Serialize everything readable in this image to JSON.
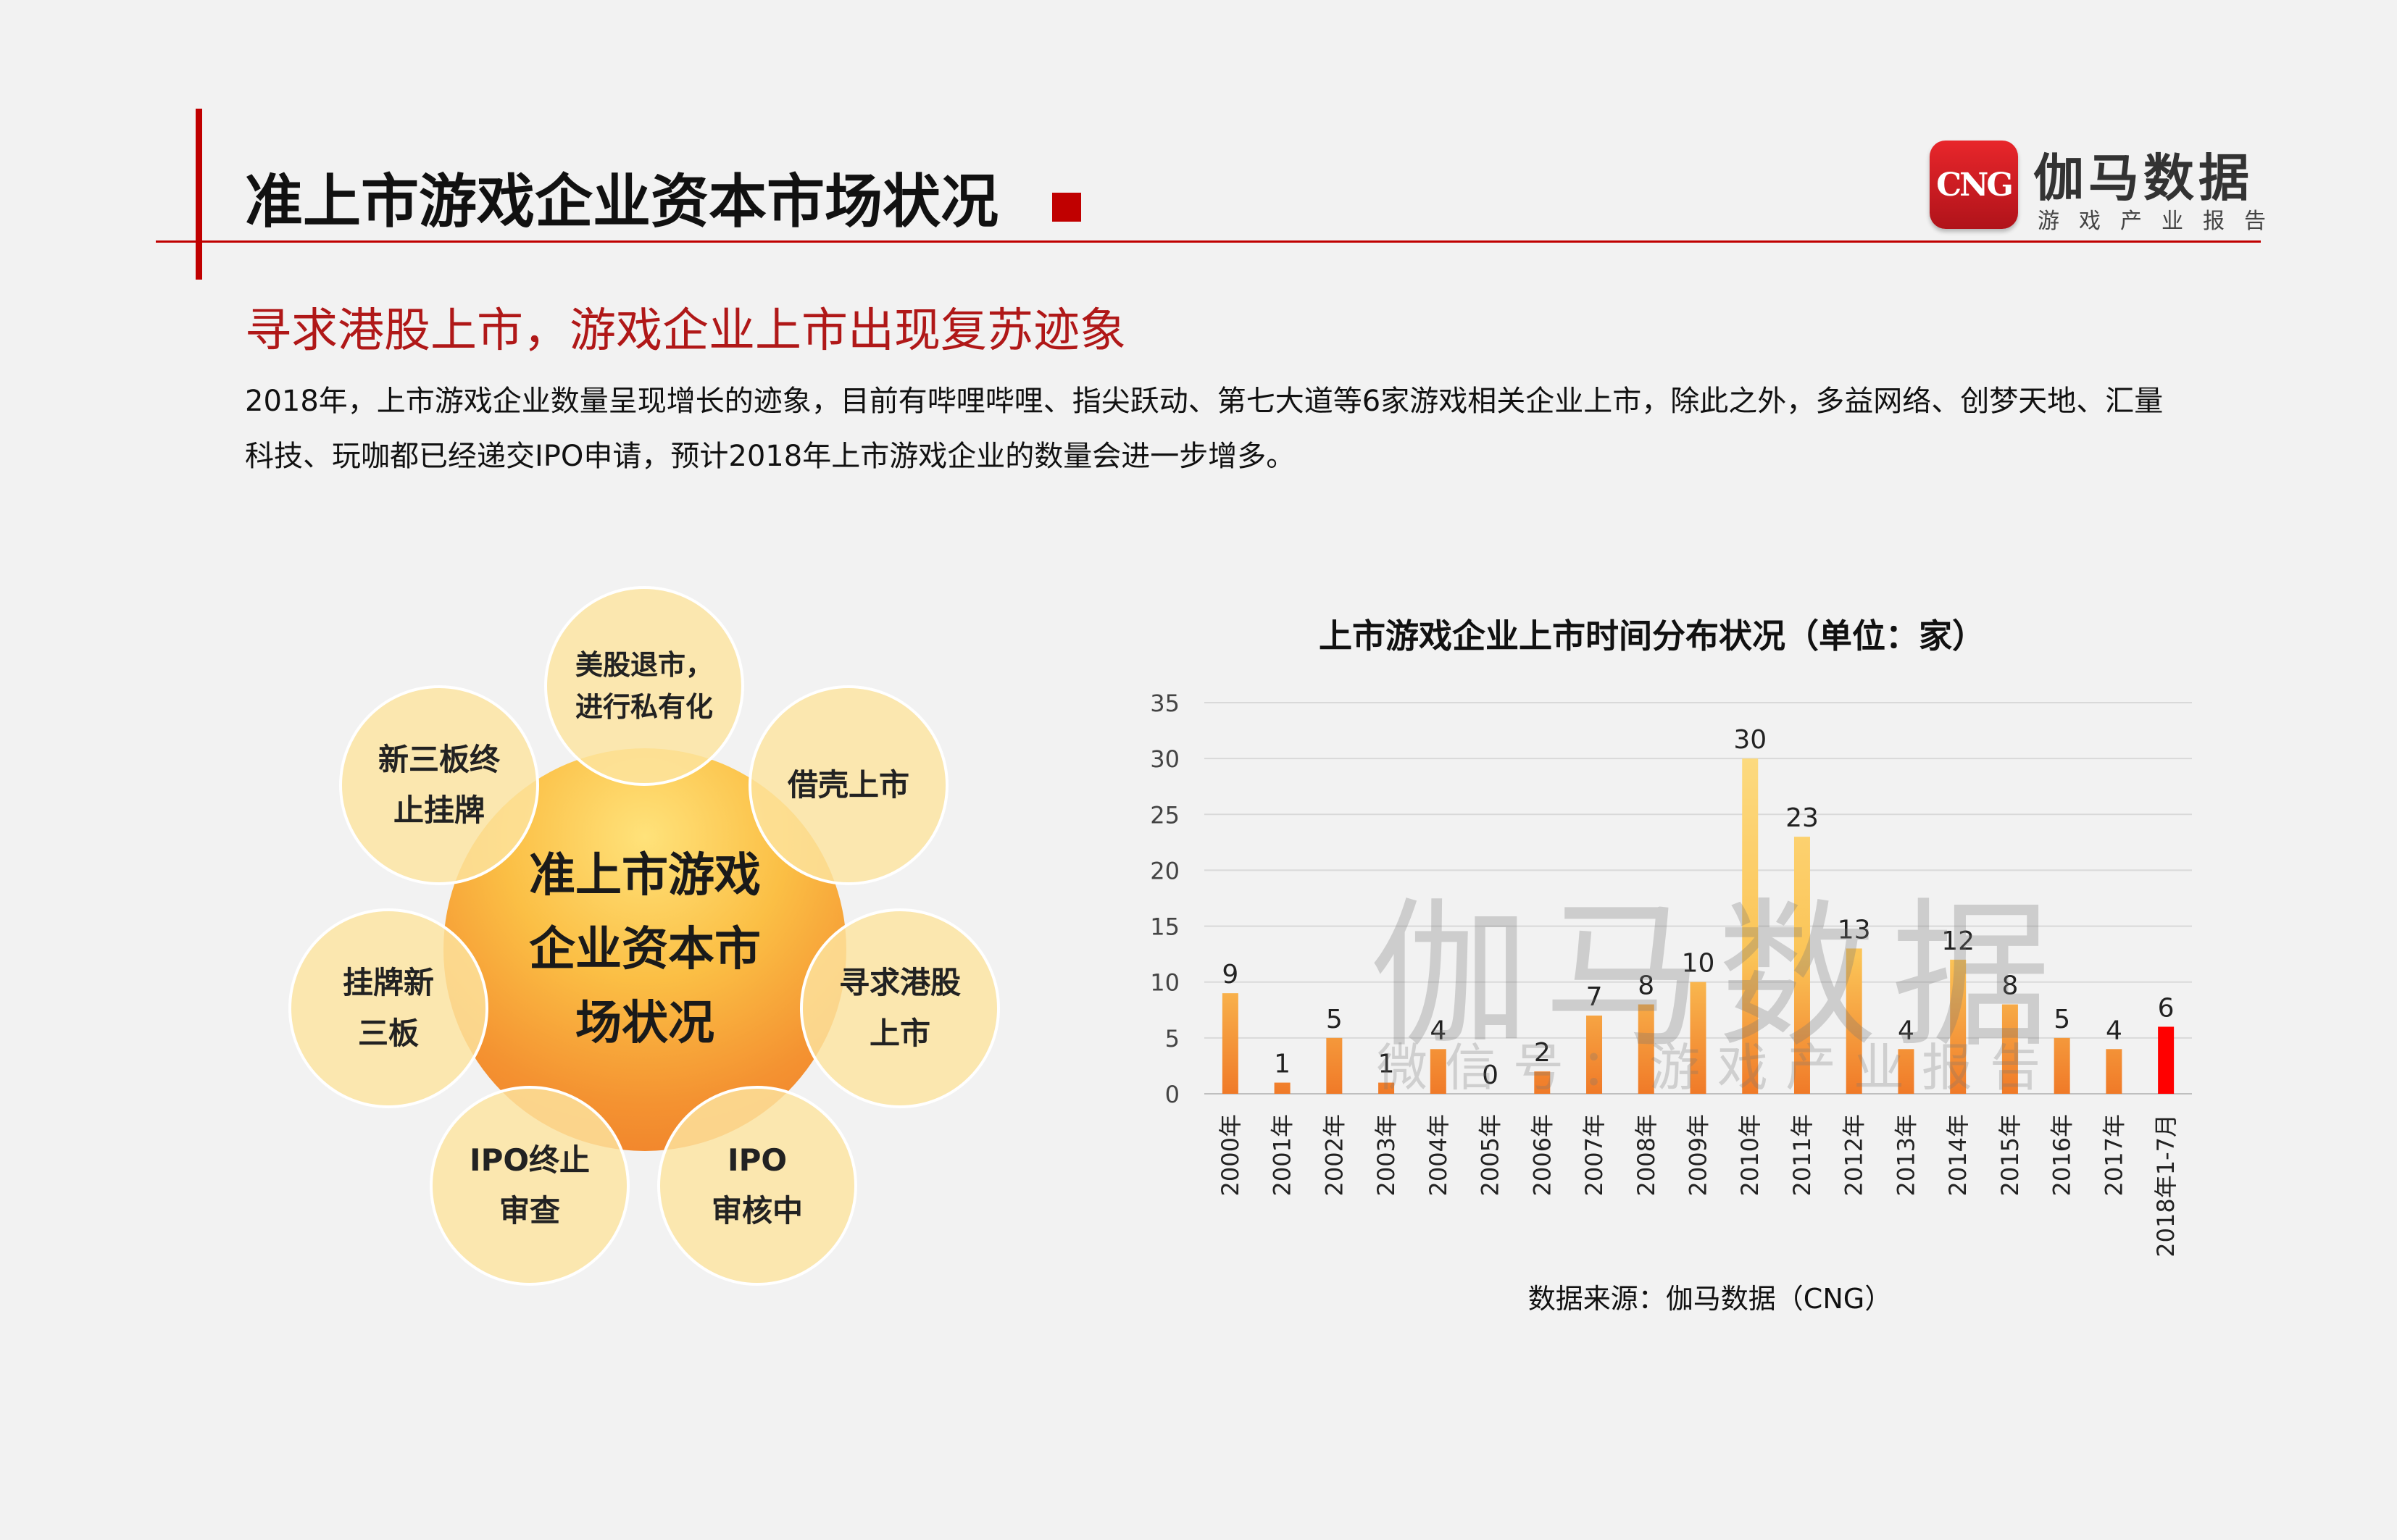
{
  "header": {
    "title": "准上市游戏企业资本市场状况",
    "logo_badge": "CNG",
    "logo_name": "伽马数据",
    "logo_sub": "游戏产业报告",
    "accent": "#c00000"
  },
  "subtitle": "寻求港股上市，游戏企业上市出现复苏迹象",
  "body_lines": [
    "2018年，上市游戏企业数量呈现增长的迹象，目前有哔哩哔哩、指尖跃动、第七大道等6家游戏相关企业上市，除此之外，多益网络、创梦天地、汇量",
    "科技、玩咖都已经递交IPO申请，预计2018年上市游戏企业的数量会进一步增多。"
  ],
  "diagram": {
    "center": [
      "准上市游戏",
      "企业资本市",
      "场状况"
    ],
    "top": [
      "美股退市，",
      "进行私有化"
    ],
    "top_right": [
      "借壳上市"
    ],
    "right": [
      "寻求港股",
      "上市"
    ],
    "bottom_right": [
      "IPO",
      "审核中"
    ],
    "bottom_left": [
      "IPO终止",
      "审查"
    ],
    "left": [
      "挂牌新",
      "三板"
    ],
    "top_left": [
      "新三板终",
      "止挂牌"
    ]
  },
  "chart_data": {
    "type": "bar",
    "title": "上市游戏企业上市时间分布状况（单位：家）",
    "categories": [
      "2000年",
      "2001年",
      "2002年",
      "2003年",
      "2004年",
      "2005年",
      "2006年",
      "2007年",
      "2008年",
      "2009年",
      "2010年",
      "2011年",
      "2012年",
      "2013年",
      "2014年",
      "2015年",
      "2016年",
      "2017年",
      "2018年1-7月"
    ],
    "values": [
      9,
      1,
      5,
      1,
      4,
      0,
      2,
      7,
      8,
      10,
      30,
      23,
      13,
      4,
      12,
      8,
      5,
      4,
      6
    ],
    "ylim": [
      0,
      35
    ],
    "yticks": [
      0,
      5,
      10,
      15,
      20,
      25,
      30,
      35
    ],
    "grid": true,
    "colors": {
      "bar_top": "#fde08a",
      "bar_bottom": "#f07a28",
      "highlight": "#ff0000"
    },
    "highlight_index": 18
  },
  "source": "数据来源：伽马数据（CNG）",
  "watermark": {
    "main": "伽马数据",
    "sub": "微信号：游戏产业报告"
  }
}
